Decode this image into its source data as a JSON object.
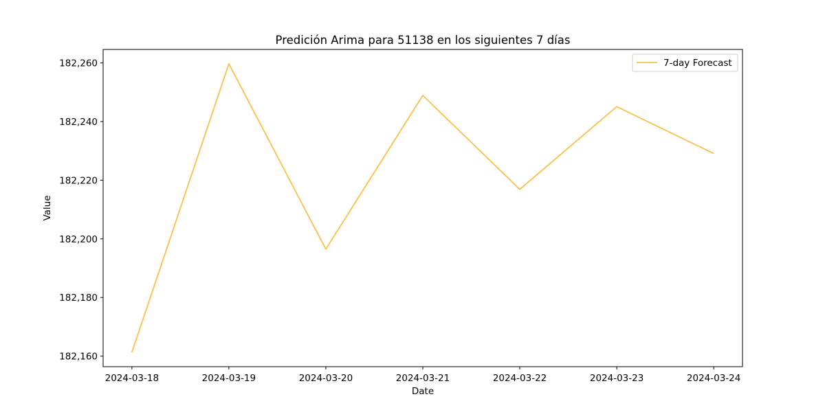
{
  "chart_data": {
    "type": "line",
    "title": "Predición Arima para 51138 en los siguientes 7 días",
    "xlabel": "Date",
    "ylabel": "Value",
    "x": [
      "2024-03-18",
      "2024-03-19",
      "2024-03-20",
      "2024-03-21",
      "2024-03-22",
      "2024-03-23",
      "2024-03-24"
    ],
    "series": [
      {
        "name": "7-day Forecast",
        "color": "#fcbf49",
        "values": [
          182161.3,
          182259.7,
          182196.5,
          182248.9,
          182216.9,
          182245.1,
          182229.1
        ]
      }
    ],
    "yticks": [
      182160,
      182180,
      182200,
      182220,
      182240,
      182260
    ],
    "ytick_labels": [
      "182,160",
      "182,180",
      "182,200",
      "182,220",
      "182,240",
      "182,260"
    ],
    "ylim": [
      182156.4,
      182264.6
    ],
    "grid": false,
    "legend_position": "top-right"
  }
}
